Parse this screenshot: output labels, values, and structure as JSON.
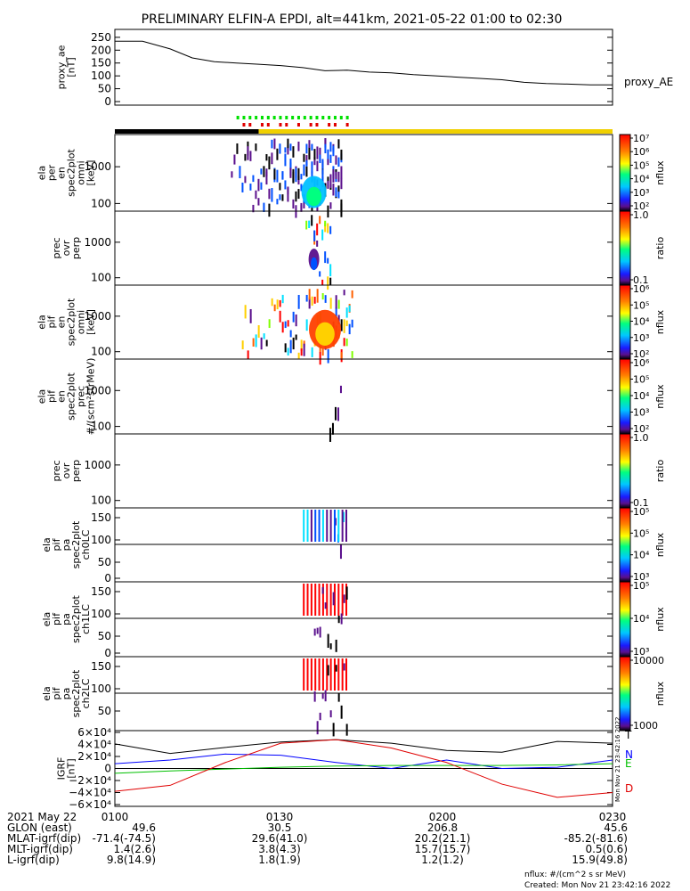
{
  "title": "PRELIMINARY ELFIN-A EPDI, alt=441km, 2021-05-22 01:00 to 02:30",
  "chart_data": [
    {
      "type": "line",
      "ylabel": "proxy_ae\n[nT]",
      "series_label": "proxy_AE",
      "yticks": [
        "250",
        "200",
        "150",
        "100",
        "50",
        "0"
      ],
      "ylim": [
        0,
        260
      ],
      "x_minutes": [
        0,
        5,
        10,
        14,
        18,
        22,
        26,
        30,
        34,
        38,
        42,
        46,
        50,
        54,
        58,
        62,
        66,
        70,
        74,
        78,
        82,
        86,
        90
      ],
      "values": [
        235,
        235,
        205,
        170,
        155,
        150,
        145,
        140,
        132,
        120,
        122,
        115,
        112,
        105,
        100,
        95,
        90,
        85,
        75,
        70,
        68,
        65,
        65
      ]
    },
    {
      "type": "heatmap",
      "ylabel": "ela\nper\nen\nspec2plot\nomni\n[keV]",
      "yticks": [
        "1000",
        "100"
      ],
      "colorbar_ticks": [
        "10⁷",
        "10⁶",
        "10⁵",
        "10⁴",
        "10³",
        "10²"
      ],
      "colorbar_label": "nflux"
    },
    {
      "type": "heatmap",
      "ylabel": "prec\novr\nperp",
      "yticks": [
        "1000",
        "100"
      ],
      "colorbar_ticks": [
        "1.0",
        "0.1"
      ],
      "colorbar_label": "ratio"
    },
    {
      "type": "heatmap",
      "ylabel": "ela\npif\nen\nspec2plot\nomni\n[keV]",
      "yticks": [
        "1000",
        "100"
      ],
      "colorbar_ticks": [
        "10⁶",
        "10⁵",
        "10⁴",
        "10³",
        "10²"
      ],
      "colorbar_label": "nflux"
    },
    {
      "type": "heatmap",
      "ylabel": "ela\npif\nen\nspec2plot\nprec\n#/(scm²strMeV)",
      "yticks": [
        "1000",
        "100"
      ],
      "colorbar_ticks": [
        "10⁶",
        "10⁵",
        "10⁴",
        "10³",
        "10²"
      ],
      "colorbar_label": "nflux"
    },
    {
      "type": "heatmap",
      "ylabel": "prec\novr\nperp",
      "yticks": [
        "1000",
        "100"
      ],
      "colorbar_ticks": [
        "1.0",
        "0.1"
      ],
      "colorbar_label": "ratio"
    },
    {
      "type": "heatmap",
      "ylabel": "ela\npif\npa\nspec2plot\nch0LC",
      "yticks": [
        "150",
        "100",
        "50",
        "0"
      ],
      "colorbar_ticks": [
        "10⁵",
        "10⁵",
        "10⁴",
        "10³"
      ],
      "colorbar_label": "nflux"
    },
    {
      "type": "heatmap",
      "ylabel": "ela\npif\npa\nspec2plot\nch1LC",
      "yticks": [
        "150",
        "100",
        "50",
        "0"
      ],
      "colorbar_ticks": [
        "10⁵",
        "10⁴",
        "10³"
      ],
      "colorbar_label": "nflux"
    },
    {
      "type": "heatmap",
      "ylabel": "ela\npif\npa\nspec2plot\nch2LC",
      "yticks": [
        "150",
        "100",
        "50"
      ],
      "colorbar_ticks": [
        "10000",
        "1000"
      ],
      "colorbar_label": "nflux"
    },
    {
      "type": "line",
      "ylabel": "IGRF\n[nT]",
      "yticks": [
        "6×10⁴",
        "4×10⁴",
        "2×10⁴",
        "0",
        "−2×10⁴",
        "−4×10⁴",
        "−6×10⁴"
      ],
      "ylim": [
        -60000,
        60000
      ],
      "x_minutes": [
        0,
        10,
        20,
        30,
        40,
        50,
        60,
        70,
        80,
        90
      ],
      "series": [
        {
          "name": "T",
          "color": "#000000",
          "values": [
            41000,
            25000,
            35000,
            44000,
            48000,
            42000,
            30000,
            27000,
            45000,
            42000
          ]
        },
        {
          "name": "N",
          "color": "#0000ff",
          "values": [
            8000,
            14000,
            24000,
            22000,
            10000,
            0,
            14000,
            0,
            2000,
            14000
          ]
        },
        {
          "name": "E",
          "color": "#00c000",
          "values": [
            -8000,
            -4000,
            -1000,
            2000,
            4000,
            5000,
            5000,
            5000,
            6000,
            8000
          ]
        },
        {
          "name": "D",
          "color": "#e00000",
          "values": [
            -38000,
            -28000,
            10000,
            42000,
            48000,
            34000,
            10000,
            -26000,
            -48000,
            -40000
          ]
        }
      ]
    }
  ],
  "orbit_table": {
    "date": "2021 May 22",
    "rows": [
      {
        "label": "GLON (east)",
        "values": [
          "49.6",
          "30.5",
          "206.8",
          "45.6"
        ]
      },
      {
        "label": "MLAT-igrf(dip)",
        "values": [
          "-71.4(-74.5)",
          "29.6(41.0)",
          "20.2(21.1)",
          "-85.2(-81.6)"
        ]
      },
      {
        "label": "MLT-igrf(dip)",
        "values": [
          "1.4(2.6)",
          "3.8(4.3)",
          "15.7(15.7)",
          "0.5(0.6)"
        ]
      },
      {
        "label": "L-igrf(dip)",
        "values": [
          "9.8(14.9)",
          "1.8(1.9)",
          "1.2(1.2)",
          "15.9(49.8)"
        ]
      }
    ],
    "times": [
      "0100",
      "0130",
      "0200",
      "0230"
    ]
  },
  "footer": {
    "unit_note": "nflux: #/(cm^2 s sr MeV)",
    "created": "Created: Mon Nov 21 23:42:16 2022",
    "side_stamp": "Mon Nov 21 23:42:16 2022"
  }
}
